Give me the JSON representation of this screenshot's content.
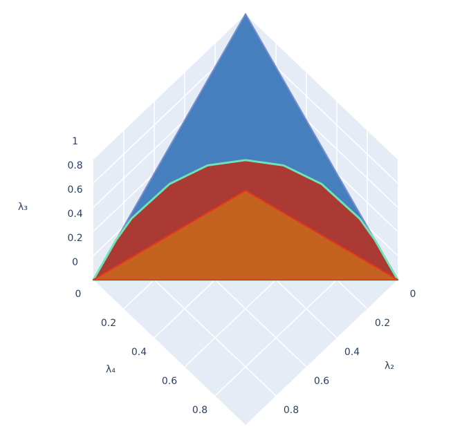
{
  "chart_data": {
    "type": "surface3d",
    "axes": {
      "x": {
        "title": "λ₂",
        "lim": [
          0,
          1
        ],
        "ticks": [
          0,
          0.2,
          0.4,
          0.6,
          0.8
        ]
      },
      "y": {
        "title": "λ₄",
        "lim": [
          0,
          1
        ],
        "ticks": [
          0,
          0.2,
          0.4,
          0.6,
          0.8
        ]
      },
      "z": {
        "title": "λ₃",
        "lim": [
          0,
          1
        ],
        "ticks": [
          0,
          0.2,
          0.4,
          0.6,
          0.8,
          1
        ]
      }
    },
    "series": [
      {
        "color": "#3d79b9",
        "x": [
          1,
          0,
          0
        ],
        "y": [
          0,
          1,
          0
        ],
        "z": [
          0,
          0,
          1
        ]
      },
      {
        "color": "#b2372c",
        "x": [
          0,
          0,
          0.01,
          0.07,
          0.16,
          0.275,
          0.41,
          0.57,
          0.76,
          0.85,
          1
        ],
        "y": [
          1,
          0.85,
          0.76,
          0.57,
          0.41,
          0.275,
          0.16,
          0.07,
          0.01,
          0,
          0
        ],
        "z": [
          0,
          0.15,
          0.23,
          0.36,
          0.43,
          0.45,
          0.43,
          0.36,
          0.23,
          0.15,
          0
        ]
      },
      {
        "color": "#c4651f",
        "x": [
          1,
          0,
          0.33
        ],
        "y": [
          0,
          1,
          0.33
        ],
        "z": [
          0,
          0,
          0.33
        ]
      }
    ],
    "grid": true
  }
}
